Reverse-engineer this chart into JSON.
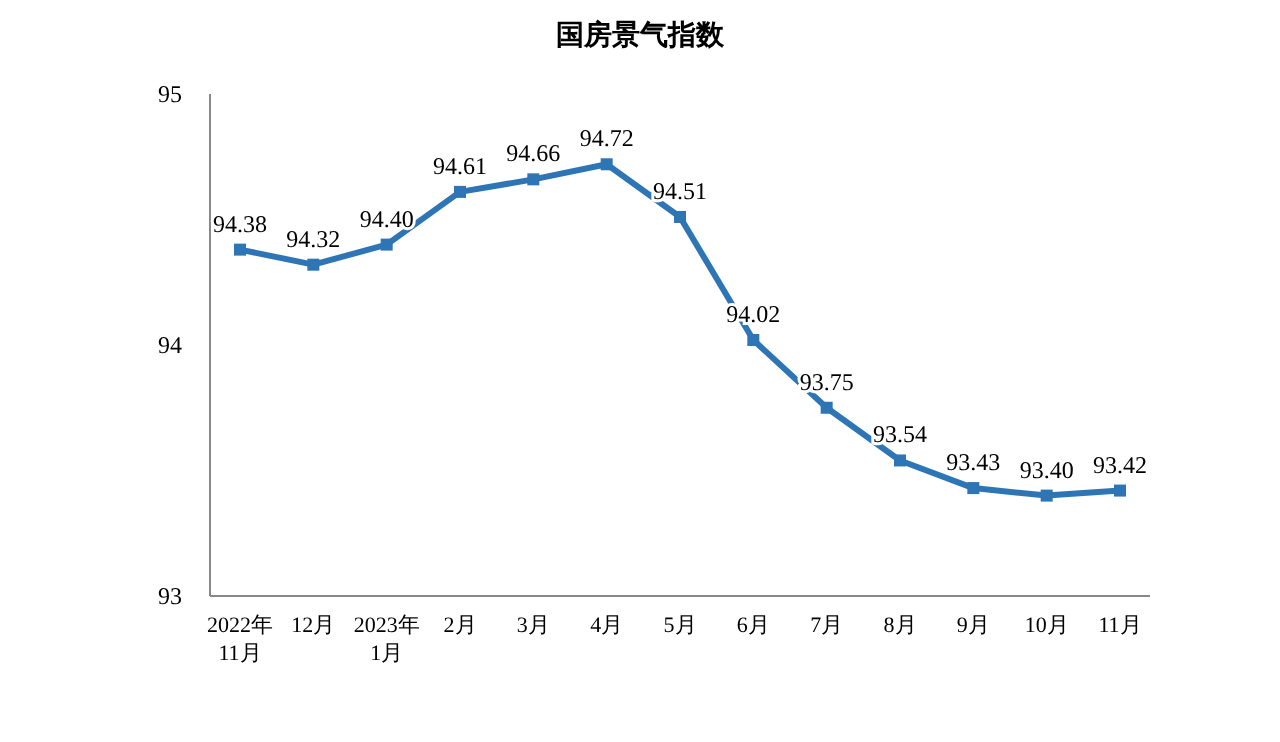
{
  "chart_data": {
    "type": "line",
    "title": "国房景气指数",
    "categories": [
      "2022年\n11月",
      "12月",
      "2023年\n1月",
      "2月",
      "3月",
      "4月",
      "5月",
      "6月",
      "7月",
      "8月",
      "9月",
      "10月",
      "11月"
    ],
    "series": [
      {
        "color": "#2e75b6",
        "value_labels": [
          "94.38",
          "94.32",
          "94.40",
          "94.61",
          "94.66",
          "94.72",
          "94.51",
          "94.02",
          "93.75",
          "93.54",
          "93.43",
          "93.40",
          "93.42"
        ],
        "values": [
          94.38,
          94.32,
          94.4,
          94.61,
          94.66,
          94.72,
          94.51,
          94.02,
          93.75,
          93.54,
          93.43,
          93.4,
          93.42
        ]
      }
    ],
    "ylim": [
      93,
      95
    ],
    "yticks": [
      93,
      94,
      95
    ],
    "grid": false,
    "marker": "square",
    "line_style": "solid"
  }
}
